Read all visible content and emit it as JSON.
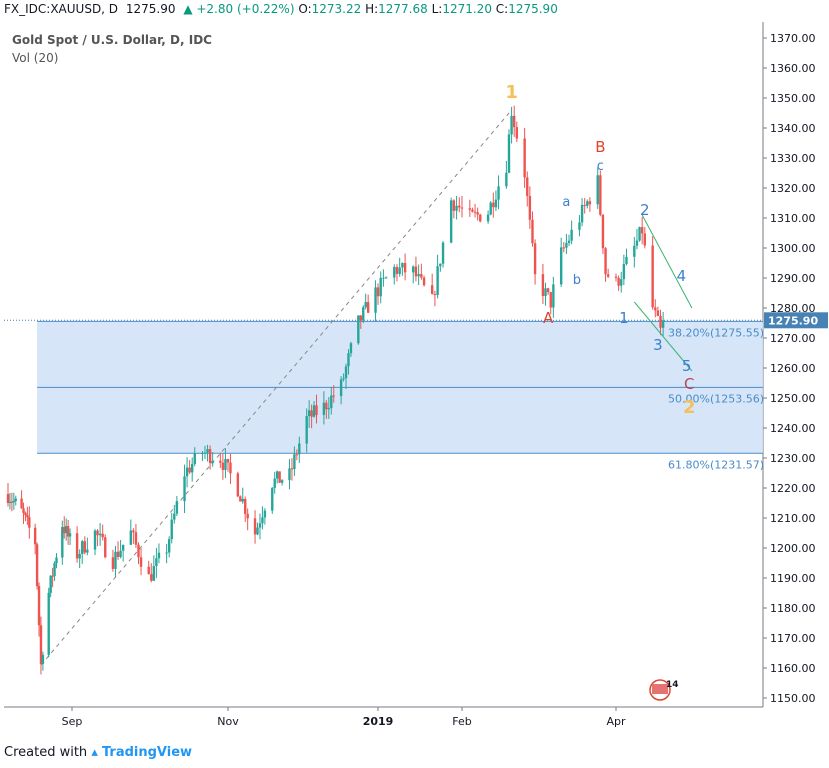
{
  "header": {
    "symbol": "FX_IDC:XAUUSD, D",
    "last": "1275.90",
    "change": "▲ +2.80 (+0.22%)",
    "o_label": "O:",
    "o_value": "1273.22",
    "h_label": "H:",
    "h_value": "1277.68",
    "l_label": "L:",
    "l_value": "1271.20",
    "c_label": "C:",
    "c_value": "1275.90"
  },
  "legend": {
    "title": "Gold Spot / U.S. Dollar, D, IDC",
    "volume": "Vol (20)"
  },
  "footer": {
    "created_with": "Created with",
    "brand": "TradingView"
  },
  "badge": {
    "text": "14"
  },
  "colors": {
    "up": "#26a69a",
    "down": "#ef5350",
    "zone_fill": "#cfe2f7",
    "fib_line": "#4a8cc9",
    "price_tag": "#4682b4",
    "wave_blue": "#3d7fd0",
    "wave_orange": "#f5c05a",
    "wave_red": "#e0442b",
    "trend_green": "#3cb371"
  },
  "chart_data": {
    "type": "candlestick",
    "title": "Gold Spot / U.S. Dollar, D, IDC",
    "ylim": [
      1145,
      1375
    ],
    "y_ticks": [
      "1150.00",
      "1160.00",
      "1170.00",
      "1180.00",
      "1190.00",
      "1200.00",
      "1210.00",
      "1220.00",
      "1230.00",
      "1240.00",
      "1250.00",
      "1260.00",
      "1270.00",
      "1280.00",
      "1290.00",
      "1300.00",
      "1310.00",
      "1320.00",
      "1330.00",
      "1340.00",
      "1350.00",
      "1360.00",
      "1370.00"
    ],
    "x_labels": [
      "Sep",
      "Nov",
      "2019",
      "Feb",
      "Apr"
    ],
    "last_price": "1275.90",
    "price_path": [
      [
        "2018-07-30",
        1218
      ],
      [
        "2018-08-06",
        1212
      ],
      [
        "2018-08-13",
        1202
      ],
      [
        "2018-08-16",
        1161
      ],
      [
        "2018-08-20",
        1185
      ],
      [
        "2018-08-27",
        1208
      ],
      [
        "2018-09-03",
        1198
      ],
      [
        "2018-09-10",
        1205
      ],
      [
        "2018-09-17",
        1196
      ],
      [
        "2018-09-24",
        1205
      ],
      [
        "2018-10-01",
        1190
      ],
      [
        "2018-10-08",
        1200
      ],
      [
        "2018-10-15",
        1225
      ],
      [
        "2018-10-22",
        1232
      ],
      [
        "2018-10-29",
        1230
      ],
      [
        "2018-11-05",
        1220
      ],
      [
        "2018-11-12",
        1205
      ],
      [
        "2018-11-19",
        1222
      ],
      [
        "2018-11-26",
        1224
      ],
      [
        "2018-12-03",
        1243
      ],
      [
        "2018-12-10",
        1247
      ],
      [
        "2018-12-17",
        1254
      ],
      [
        "2018-12-24",
        1275
      ],
      [
        "2018-12-31",
        1285
      ],
      [
        "2019-01-07",
        1293
      ],
      [
        "2019-01-14",
        1292
      ],
      [
        "2019-01-21",
        1282
      ],
      [
        "2019-01-28",
        1316
      ],
      [
        "2019-02-04",
        1310
      ],
      [
        "2019-02-11",
        1312
      ],
      [
        "2019-02-18",
        1328
      ],
      [
        "2019-02-20",
        1346
      ],
      [
        "2019-02-25",
        1325
      ],
      [
        "2019-03-01",
        1290
      ],
      [
        "2019-03-07",
        1282
      ],
      [
        "2019-03-11",
        1298
      ],
      [
        "2019-03-18",
        1310
      ],
      [
        "2019-03-25",
        1322
      ],
      [
        "2019-03-28",
        1292
      ],
      [
        "2019-04-01",
        1288
      ],
      [
        "2019-04-08",
        1300
      ],
      [
        "2019-04-11",
        1306
      ],
      [
        "2019-04-15",
        1280
      ],
      [
        "2019-04-18",
        1272
      ],
      [
        "2019-04-19",
        1275.9
      ]
    ],
    "fib_levels": [
      {
        "label": "38.20%(1275.55)",
        "value": 1275.55
      },
      {
        "label": "50.00%(1253.56)",
        "value": 1253.56
      },
      {
        "label": "61.80%(1231.57)",
        "value": 1231.57
      }
    ],
    "trend_line": {
      "from": [
        "2018-08-16",
        1161
      ],
      "to": [
        "2019-02-20",
        1346
      ]
    },
    "channel_upper": {
      "from": [
        "2019-04-11",
        1311
      ],
      "to": [
        "2019-04-30",
        1280
      ]
    },
    "channel_lower": {
      "from": [
        "2019-04-08",
        1282
      ],
      "to": [
        "2019-04-30",
        1259
      ]
    },
    "wave_labels": [
      {
        "text": "1",
        "date": "2019-02-20",
        "y": 1350,
        "color": "#f5c05a",
        "size": 18
      },
      {
        "text": "B",
        "date": "2019-03-26",
        "y": 1332,
        "color": "#e0442b",
        "size": 15
      },
      {
        "text": "c",
        "date": "2019-03-26",
        "y": 1326,
        "color": "#3d7fd0",
        "size": 13
      },
      {
        "text": "a",
        "date": "2019-03-13",
        "y": 1314,
        "color": "#3d7fd0",
        "size": 13
      },
      {
        "text": "b",
        "date": "2019-03-17",
        "y": 1288,
        "color": "#3d7fd0",
        "size": 13
      },
      {
        "text": "2",
        "date": "2019-04-12",
        "y": 1311,
        "color": "#3d7fd0",
        "size": 15
      },
      {
        "text": "4",
        "date": "2019-04-26",
        "y": 1289,
        "color": "#3d7fd0",
        "size": 15
      },
      {
        "text": "A",
        "date": "2019-03-06",
        "y": 1275,
        "color": "#e0442b",
        "size": 15
      },
      {
        "text": "1",
        "date": "2019-04-04",
        "y": 1275,
        "color": "#3d7fd0",
        "size": 15
      },
      {
        "text": "3",
        "date": "2019-04-17",
        "y": 1266,
        "color": "#3d7fd0",
        "size": 15
      },
      {
        "text": "5",
        "date": "2019-04-28",
        "y": 1259,
        "color": "#3d7fd0",
        "size": 15
      },
      {
        "text": "C",
        "date": "2019-04-29",
        "y": 1253,
        "color": "#b5475a",
        "size": 15
      },
      {
        "text": "2",
        "date": "2019-04-29",
        "y": 1245,
        "color": "#f5c05a",
        "size": 18
      }
    ]
  }
}
